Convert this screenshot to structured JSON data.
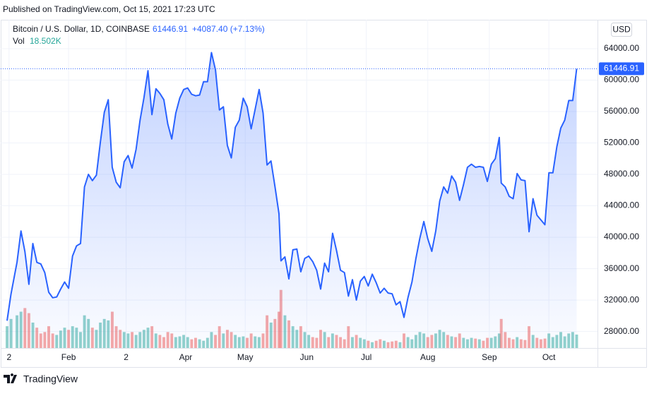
{
  "header": {
    "published": "Published on TradingView.com, Oct 15, 2021 17:23 UTC",
    "symbol": "Bitcoin / U.S. Dollar, 1D, COINBASE",
    "change": "+4087.40 (+7.13%)",
    "vol_value": "18.502K",
    "currency": "USD",
    "brand": "TradingView"
  },
  "chart_data": {
    "type": "area",
    "x": [
      0,
      2,
      5,
      7,
      9,
      11,
      13,
      15,
      17,
      19,
      21,
      23,
      25,
      27,
      29,
      31,
      33,
      35,
      37,
      39,
      41,
      43,
      45,
      47,
      49,
      51,
      53,
      55,
      57,
      59,
      61,
      63,
      65,
      67,
      69,
      71,
      73,
      75,
      77,
      79,
      81,
      83,
      85,
      87,
      89,
      91,
      93,
      95,
      97,
      99,
      101,
      103,
      105,
      107,
      109,
      111,
      113,
      115,
      117,
      119,
      121,
      123,
      125,
      127,
      129,
      131,
      133,
      135,
      137,
      138,
      140,
      142,
      144,
      146,
      148,
      150,
      152,
      154,
      156,
      158,
      160,
      162,
      164,
      166,
      168,
      170,
      172,
      174,
      176,
      178,
      180,
      182,
      184,
      186,
      188,
      190,
      192,
      194,
      196,
      198,
      200,
      202,
      204,
      206,
      208,
      210,
      212,
      214,
      216,
      218,
      220,
      222,
      224,
      226,
      228,
      230,
      232,
      234,
      236,
      238,
      240,
      242,
      244,
      246,
      248,
      249,
      251,
      253,
      255,
      257,
      259,
      261,
      263,
      265,
      267,
      269,
      271,
      273,
      275,
      277,
      279,
      281,
      283,
      285,
      287
    ],
    "series": [
      {
        "name": "Bitcoin / U.S. Dollar, 1D, COINBASE",
        "color": "#2962ff",
        "values": [
          29374,
          32782,
          36825,
          40797,
          38150,
          34000,
          39200,
          36800,
          36600,
          35500,
          33000,
          32300,
          32400,
          33400,
          34300,
          33500,
          37600,
          38900,
          39200,
          46400,
          48000,
          47200,
          47900,
          52100,
          55900,
          57500,
          48900,
          47000,
          46300,
          49600,
          50400,
          48800,
          51200,
          54900,
          57800,
          61200,
          55600,
          58900,
          58300,
          57500,
          54400,
          52500,
          55800,
          57700,
          58800,
          59000,
          58200,
          58000,
          58100,
          59800,
          59800,
          63500,
          61300,
          56200,
          56600,
          51700,
          50100,
          54000,
          54900,
          57700,
          56600,
          53800,
          56300,
          58800,
          55800,
          49200,
          49700,
          46400,
          43000,
          37000,
          37500,
          34700,
          38400,
          38500,
          35600,
          37300,
          37600,
          36900,
          35800,
          33400,
          36700,
          35600,
          40500,
          38300,
          35800,
          35500,
          32500,
          34600,
          32000,
          34400,
          35000,
          33800,
          35300,
          34200,
          32900,
          33500,
          32900,
          32800,
          31400,
          31800,
          29800,
          32300,
          34300,
          37300,
          39900,
          42000,
          39800,
          38200,
          40800,
          44600,
          46400,
          45600,
          47800,
          47000,
          44700,
          46700,
          48900,
          49300,
          48900,
          49000,
          48900,
          47100,
          49300,
          50000,
          52700,
          46900,
          46400,
          45200,
          44900,
          48100,
          47300,
          47200,
          40700,
          44900,
          42800,
          42200,
          41600,
          48200,
          48200,
          51500,
          53900,
          54900,
          57400,
          57400,
          61446.91
        ]
      },
      {
        "name": "Vol",
        "axis": "y2",
        "up_color": "#26a69a",
        "down_color": "#ef5350",
        "values": [
          30,
          40,
          45,
          50,
          55,
          48,
          35,
          28,
          20,
          22,
          30,
          20,
          18,
          24,
          28,
          25,
          30,
          28,
          22,
          45,
          40,
          28,
          25,
          35,
          40,
          38,
          50,
          30,
          25,
          22,
          20,
          22,
          18,
          22,
          25,
          28,
          30,
          20,
          18,
          15,
          22,
          20,
          15,
          16,
          18,
          15,
          12,
          14,
          12,
          10,
          14,
          22,
          18,
          30,
          20,
          25,
          22,
          18,
          15,
          16,
          14,
          20,
          16,
          15,
          20,
          45,
          35,
          40,
          50,
          80,
          45,
          38,
          30,
          25,
          30,
          22,
          18,
          15,
          14,
          25,
          22,
          15,
          20,
          18,
          15,
          12,
          30,
          15,
          18,
          14,
          12,
          10,
          8,
          10,
          12,
          10,
          8,
          9,
          10,
          8,
          20,
          15,
          12,
          18,
          22,
          20,
          15,
          18,
          20,
          25,
          22,
          18,
          16,
          15,
          20,
          14,
          12,
          14,
          13,
          12,
          10,
          14,
          14,
          16,
          20,
          40,
          22,
          14,
          12,
          15,
          12,
          11,
          30,
          18,
          14,
          12,
          13,
          20,
          15,
          18,
          22,
          16,
          20,
          22,
          18.502
        ]
      }
    ],
    "xlim": [
      0,
      297.5
    ],
    "xticks": [
      {
        "value": 1,
        "label": "2"
      },
      {
        "value": 31,
        "label": "Feb"
      },
      {
        "value": 60,
        "label": "2"
      },
      {
        "value": 90,
        "label": "Apr"
      },
      {
        "value": 120,
        "label": "May"
      },
      {
        "value": 151,
        "label": "Jun"
      },
      {
        "value": 181,
        "label": "Jul"
      },
      {
        "value": 212,
        "label": "Aug"
      },
      {
        "value": 243,
        "label": "Sep"
      },
      {
        "value": 273,
        "label": "Oct"
      }
    ],
    "ylim": [
      25900,
      67500
    ],
    "yticks": [
      {
        "value": 28000,
        "label": "28000.00"
      },
      {
        "value": 32000,
        "label": "32000.00"
      },
      {
        "value": 36000,
        "label": "36000.00"
      },
      {
        "value": 40000,
        "label": "40000.00"
      },
      {
        "value": 44000,
        "label": "44000.00"
      },
      {
        "value": 48000,
        "label": "48000.00"
      },
      {
        "value": 52000,
        "label": "52000.00"
      },
      {
        "value": 56000,
        "label": "56000.00"
      },
      {
        "value": 60000,
        "label": "60000.00"
      },
      {
        "value": 64000,
        "label": "64000.00"
      }
    ],
    "y2lim": [
      0,
      450
    ],
    "grid": true
  }
}
